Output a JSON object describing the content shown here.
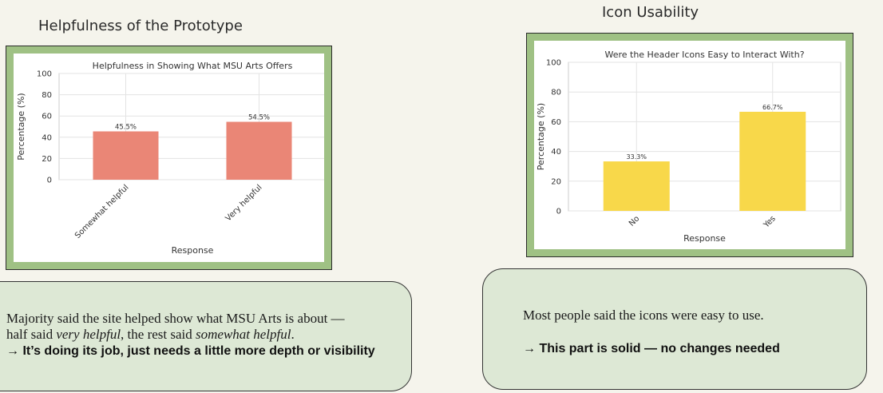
{
  "left_section": {
    "title": "Helpfulness of the Prototype"
  },
  "right_section": {
    "title": "Icon Usability"
  },
  "chart_data": [
    {
      "type": "bar",
      "title": "Helpfulness in Showing What MSU Arts Offers",
      "xlabel": "Response",
      "ylabel": "Percentage (%)",
      "categories": [
        "Somewhat helpful",
        "Very helpful"
      ],
      "values": [
        45.5,
        54.5
      ],
      "data_labels": [
        "45.5%",
        "54.5%"
      ],
      "ylim": [
        0,
        100
      ],
      "yticks": [
        "0",
        "20",
        "40",
        "60",
        "80",
        "100"
      ],
      "grid": true,
      "bar_color": "#ea8676",
      "frame_color": "#9fc184"
    },
    {
      "type": "bar",
      "title": "Were the Header Icons Easy to Interact With?",
      "xlabel": "Response",
      "ylabel": "Percentage (%)",
      "categories": [
        "No",
        "Yes"
      ],
      "values": [
        33.3,
        66.7
      ],
      "data_labels": [
        "33.3%",
        "66.7%"
      ],
      "ylim": [
        0,
        100
      ],
      "yticks": [
        "0",
        "20",
        "40",
        "60",
        "80",
        "100"
      ],
      "grid": true,
      "bar_color": "#f8d84a",
      "frame_color": "#9fc184"
    }
  ],
  "notes": {
    "left": {
      "line1": "Majority said the site helped show what MSU Arts is about —",
      "line2_prefix": "half said ",
      "line2_em1": "very helpful",
      "line2_mid": ", the rest said ",
      "line2_em2": "somewhat helpful",
      "line2_suffix": ".",
      "conclusion": "→ It’s doing its job, just needs a little more depth or visibility"
    },
    "right": {
      "line1": "Most people said the icons were easy to use.",
      "conclusion": "→ This part is solid — no changes needed"
    }
  }
}
